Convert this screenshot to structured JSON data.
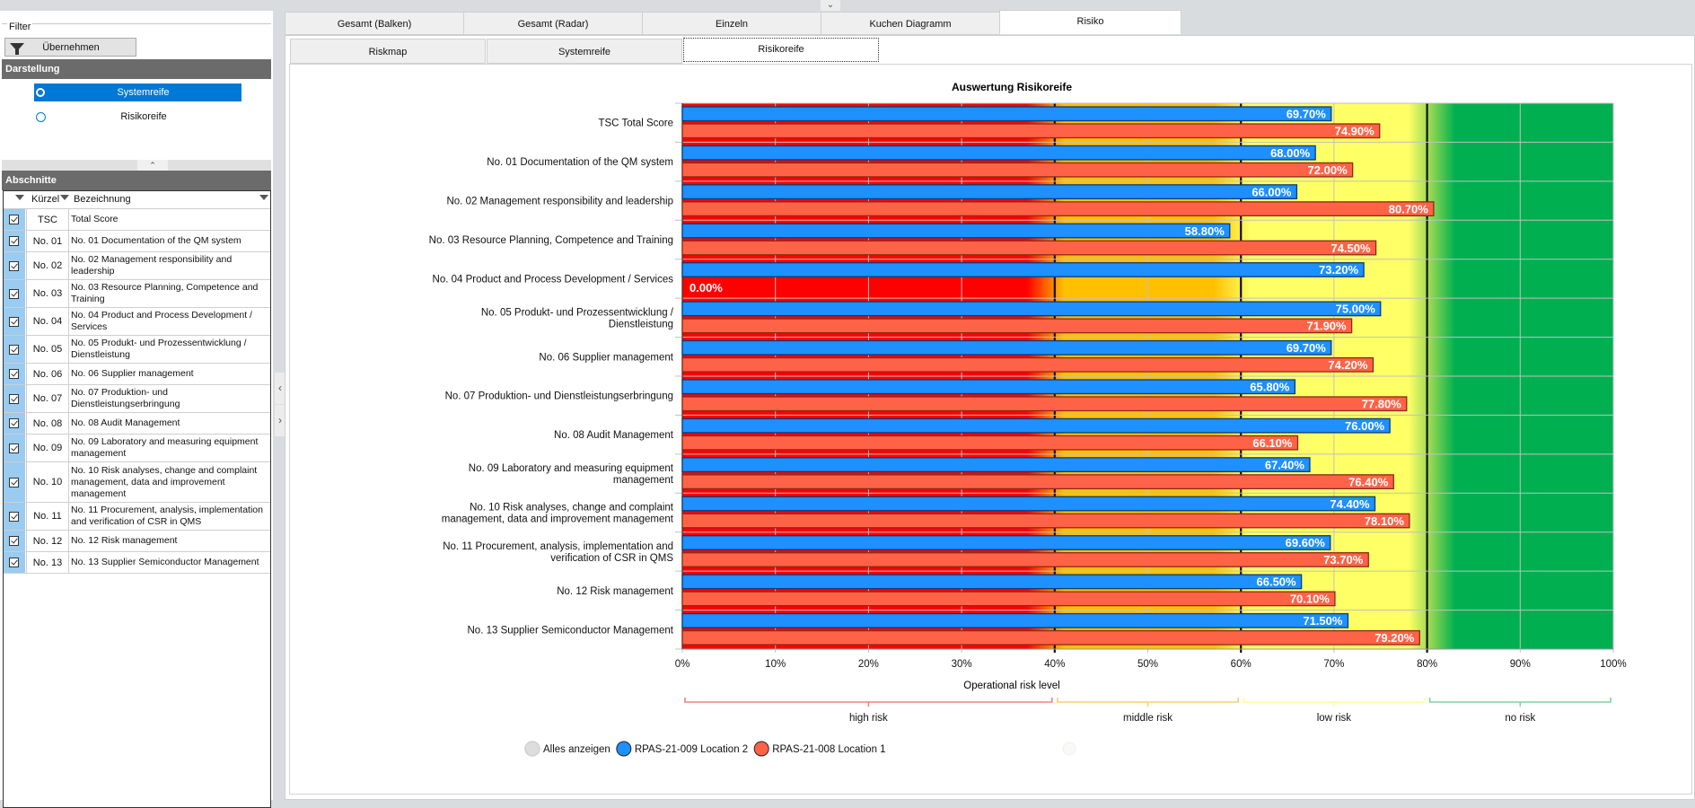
{
  "filter": {
    "group_label": "Filter",
    "apply_button": "Übernehmen",
    "apply_icon": "funnel-icon"
  },
  "darstellung": {
    "header": "Darstellung",
    "options": [
      {
        "label": "Systemreife",
        "selected": true
      },
      {
        "label": "Risikoreife",
        "selected": false
      }
    ]
  },
  "abschnitte": {
    "header": "Abschnitte",
    "columns": [
      "Kürzel",
      "Bezeichnung"
    ],
    "rows": [
      {
        "code": "TSC",
        "name": "Total Score",
        "checked": true
      },
      {
        "code": "No. 01",
        "name": "No. 01 Documentation of the QM system",
        "checked": true
      },
      {
        "code": "No. 02",
        "name": "No. 02 Management responsibility and leadership",
        "checked": true
      },
      {
        "code": "No. 03",
        "name": "No. 03 Resource Planning, Competence and Training",
        "checked": true
      },
      {
        "code": "No. 04",
        "name": "No. 04 Product and Process Development / Services",
        "checked": true
      },
      {
        "code": "No. 05",
        "name": "No. 05 Produkt- und Prozessentwicklung / Dienstleistung",
        "checked": true
      },
      {
        "code": "No. 06",
        "name": "No. 06 Supplier management",
        "checked": true
      },
      {
        "code": "No. 07",
        "name": "No. 07 Produktion- und Dienstleistungserbringung",
        "checked": true
      },
      {
        "code": "No. 08",
        "name": "No. 08 Audit Management",
        "checked": true
      },
      {
        "code": "No. 09",
        "name": "No. 09 Laboratory and measuring equipment management",
        "checked": true
      },
      {
        "code": "No. 10",
        "name": "No. 10 Risk analyses, change and complaint management, data and improvement management",
        "checked": true
      },
      {
        "code": "No. 11",
        "name": "No. 11 Procurement, analysis, implementation and verification of CSR in QMS",
        "checked": true
      },
      {
        "code": "No. 12",
        "name": "No. 12 Risk management",
        "checked": true
      },
      {
        "code": "No. 13",
        "name": "No. 13 Supplier Semiconductor Management",
        "checked": true
      }
    ]
  },
  "main_tabs": [
    {
      "label": "Gesamt (Balken)",
      "active": false
    },
    {
      "label": "Gesamt (Radar)",
      "active": false
    },
    {
      "label": "Einzeln",
      "active": false
    },
    {
      "label": "Kuchen Diagramm",
      "active": false
    },
    {
      "label": "Risiko",
      "active": true
    }
  ],
  "sub_tabs": [
    {
      "label": "Riskmap",
      "active": false
    },
    {
      "label": "Systemreife",
      "active": false
    },
    {
      "label": "Risikoreife",
      "active": true
    }
  ],
  "chart_data": {
    "type": "bar",
    "orientation": "horizontal",
    "title": "Auswertung Risikoreife",
    "xlabel": "Operational risk level",
    "ylabel": "",
    "xlim": [
      0,
      100
    ],
    "x_ticks": [
      "0%",
      "10%",
      "20%",
      "30%",
      "40%",
      "50%",
      "60%",
      "70%",
      "80%",
      "90%",
      "100%"
    ],
    "grid": true,
    "categories": [
      "TSC Total Score",
      "No. 01 Documentation of the QM system",
      "No. 02 Management responsibility and leadership",
      "No. 03 Resource Planning, Competence and Training",
      "No. 04 Product and Process Development / Services",
      "No. 05 Produkt- und Prozessentwicklung /\nDienstleistung",
      "No. 06 Supplier management",
      "No. 07 Produktion- und Dienstleistungserbringung",
      "No. 08 Audit Management",
      "No. 09 Laboratory and measuring equipment\nmanagement",
      "No. 10 Risk analyses, change and complaint\nmanagement, data and improvement management",
      "No. 11 Procurement, analysis, implementation and\nverification of CSR in QMS",
      "No. 12 Risk management",
      "No. 13 Supplier Semiconductor Management"
    ],
    "series": [
      {
        "name": "RPAS-21-009  Location 2",
        "color": "#1e90ff",
        "values": [
          69.7,
          68.0,
          66.0,
          58.8,
          73.2,
          75.0,
          69.7,
          65.8,
          76.0,
          67.4,
          74.4,
          69.6,
          66.5,
          71.5
        ]
      },
      {
        "name": "RPAS-21-008  Location 1",
        "color": "#ff6347",
        "values": [
          74.9,
          72.0,
          80.7,
          74.5,
          0.0,
          71.9,
          74.2,
          77.8,
          66.1,
          76.4,
          78.1,
          73.7,
          70.1,
          79.2
        ]
      }
    ],
    "value_format": "{v}%",
    "risk_zones": [
      {
        "label": "high risk",
        "from": 0,
        "to": 40,
        "color": "#ff0000",
        "bracket_color": "#f08080"
      },
      {
        "label": "middle risk",
        "from": 40,
        "to": 60,
        "color": "#ffc000",
        "bracket_color": "#f5d070"
      },
      {
        "label": "low risk",
        "from": 60,
        "to": 80,
        "color": "#ffff66",
        "bracket_color": "#ffff99"
      },
      {
        "label": "no risk",
        "from": 80,
        "to": 100,
        "color": "#00b050",
        "bracket_color": "#80d0a0"
      }
    ],
    "legend": {
      "position": "bottom-left",
      "items": [
        {
          "label": "Alles anzeigen",
          "color": "#dddddd"
        },
        {
          "label": "RPAS-21-009  Location 2",
          "color": "#1e90ff"
        },
        {
          "label": "RPAS-21-008  Location 1",
          "color": "#ff6347"
        }
      ]
    }
  }
}
